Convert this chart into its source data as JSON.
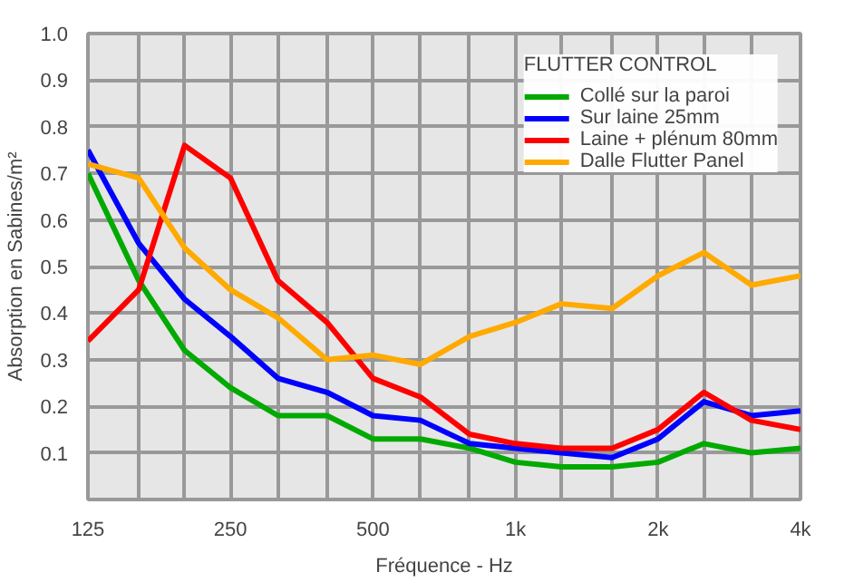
{
  "chart_data": {
    "type": "line",
    "xlabel": "Fréquence - Hz",
    "ylabel": "Absorption en Sabines/m²",
    "legend_title": "FLUTTER CONTROL",
    "log": "x",
    "grid": true,
    "legend": "top right",
    "marker": "none",
    "line_style": "solid",
    "x": [
      125,
      160,
      200,
      250,
      315,
      400,
      500,
      630,
      800,
      1000,
      1250,
      1600,
      2000,
      2500,
      3150,
      4000
    ],
    "xlim": [
      125,
      4000
    ],
    "xticks": [
      125,
      {
        "value": 160,
        "label": null
      },
      {
        "value": 200,
        "label": null
      },
      250,
      {
        "value": 315,
        "label": null
      },
      {
        "value": 400,
        "label": null
      },
      500,
      {
        "value": 630,
        "label": null
      },
      {
        "value": 800,
        "label": null
      },
      {
        "value": 1000,
        "label": "1k"
      },
      {
        "value": 1250,
        "label": null
      },
      {
        "value": 1600,
        "label": null
      },
      {
        "value": 2000,
        "label": "2k"
      },
      {
        "value": 2500,
        "label": null
      },
      {
        "value": 3150,
        "label": null
      },
      {
        "value": 4000,
        "label": "4k"
      }
    ],
    "ylim": [
      0,
      1
    ],
    "yticks": [
      0.1,
      0.2,
      0.3,
      0.4,
      0.5,
      0.6,
      0.7,
      0.8,
      0.9,
      {
        "value": 1,
        "label": "1.0"
      }
    ],
    "series": [
      {
        "name": "Collé sur la paroi",
        "color": "#00aa00",
        "values": [
          0.7,
          0.47,
          0.32,
          0.24,
          0.18,
          0.18,
          0.13,
          0.13,
          0.11,
          0.08,
          0.07,
          0.07,
          0.08,
          0.12,
          0.1,
          0.11
        ]
      },
      {
        "name": "Sur laine 25mm",
        "color": "#0000ff",
        "values": [
          0.75,
          0.55,
          0.43,
          0.35,
          0.26,
          0.23,
          0.18,
          0.17,
          0.12,
          0.11,
          0.1,
          0.09,
          0.13,
          0.21,
          0.18,
          0.19
        ]
      },
      {
        "name": "Laine + plénum 80mm",
        "color": "#ff0000",
        "values": [
          0.34,
          0.45,
          0.76,
          0.69,
          0.47,
          0.38,
          0.26,
          0.22,
          0.14,
          0.12,
          0.11,
          0.11,
          0.15,
          0.23,
          0.17,
          0.15
        ]
      },
      {
        "name": "Dalle Flutter Panel",
        "color": "#ffaa00",
        "values": [
          0.72,
          0.69,
          0.54,
          0.45,
          0.39,
          0.3,
          0.31,
          0.29,
          0.35,
          0.38,
          0.42,
          0.41,
          0.48,
          0.53,
          0.46,
          0.48
        ]
      }
    ]
  }
}
